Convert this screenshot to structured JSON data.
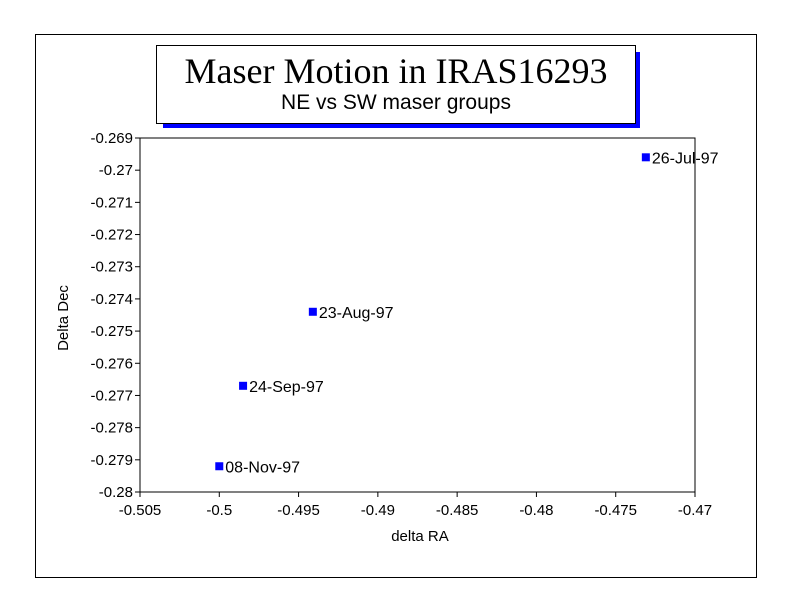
{
  "chart_data": {
    "type": "scatter",
    "title": "Maser Motion in IRAS16293",
    "subtitle": "NE vs SW maser groups",
    "xlabel": "delta RA",
    "ylabel": "Delta Dec",
    "xlim": [
      -0.505,
      -0.47
    ],
    "ylim": [
      -0.28,
      -0.269
    ],
    "x_ticks": [
      "-0.505",
      "-0.5",
      "-0.495",
      "-0.49",
      "-0.485",
      "-0.48",
      "-0.475",
      "-0.47"
    ],
    "y_ticks": [
      "-0.269",
      "-0.27",
      "-0.271",
      "-0.272",
      "-0.273",
      "-0.274",
      "-0.275",
      "-0.276",
      "-0.277",
      "-0.278",
      "-0.279",
      "-0.28"
    ],
    "grid": false,
    "marker_color": "#0000ff",
    "points": [
      {
        "x": -0.4731,
        "y": -0.2696,
        "label": "26-Jul-97"
      },
      {
        "x": -0.4941,
        "y": -0.2744,
        "label": "23-Aug-97"
      },
      {
        "x": -0.4985,
        "y": -0.2767,
        "label": "24-Sep-97"
      },
      {
        "x": -0.5,
        "y": -0.2792,
        "label": "08-Nov-97"
      }
    ]
  }
}
